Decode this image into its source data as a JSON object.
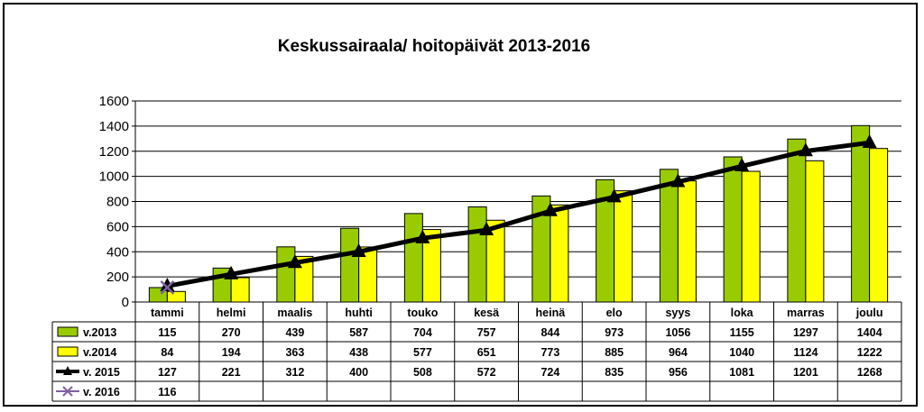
{
  "chart_data": {
    "type": "bar",
    "title": "Keskussairaala/ hoitopäivät  2013-2016",
    "categories": [
      "tammi",
      "helmi",
      "maalis",
      "huhti",
      "touko",
      "kesä",
      "heinä",
      "elo",
      "syys",
      "loka",
      "marras",
      "joulu"
    ],
    "y_ticks": [
      "0",
      "200",
      "400",
      "600",
      "800",
      "1000",
      "1200",
      "1400",
      "1600"
    ],
    "ylim": [
      0,
      1600
    ],
    "grid": true,
    "legend_placement": "data table below chart",
    "series": [
      {
        "name": "v.2013",
        "kind": "bar",
        "color": "#99cc00",
        "values": [
          115,
          270,
          439,
          587,
          704,
          757,
          844,
          973,
          1056,
          1155,
          1297,
          1404
        ]
      },
      {
        "name": "v.2014",
        "kind": "bar",
        "color": "#ffff00",
        "values": [
          84,
          194,
          363,
          438,
          577,
          651,
          773,
          885,
          964,
          1040,
          1124,
          1222
        ]
      },
      {
        "name": "v. 2015",
        "kind": "line",
        "marker": "triangle",
        "color": "#000000",
        "values": [
          127,
          221,
          312,
          400,
          508,
          572,
          724,
          835,
          956,
          1081,
          1201,
          1268
        ]
      },
      {
        "name": "v. 2016",
        "kind": "line",
        "marker": "x",
        "color": "#8060a0",
        "values": [
          116,
          null,
          null,
          null,
          null,
          null,
          null,
          null,
          null,
          null,
          null,
          null
        ]
      }
    ]
  }
}
